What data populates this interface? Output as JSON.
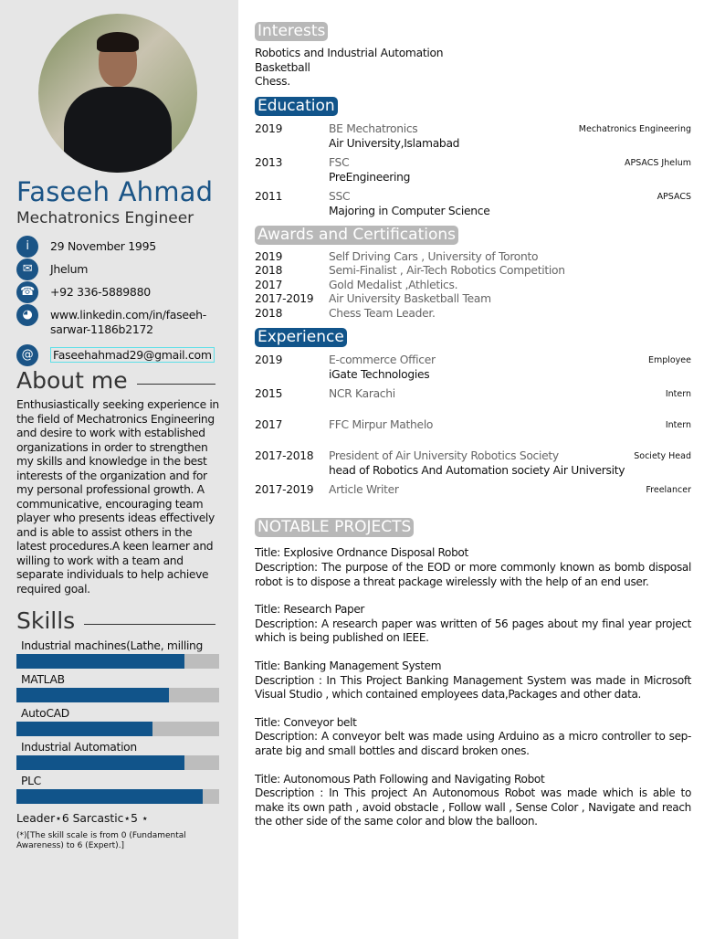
{
  "profile": {
    "name": "Faseeh Ahmad",
    "role": "Mechatronics Engineer",
    "photo_alt": "profile photo"
  },
  "contacts": [
    {
      "icon": "info-icon",
      "glyph": "i",
      "text": "29 November 1995"
    },
    {
      "icon": "envelope-icon",
      "glyph": "✉",
      "text": "Jhelum"
    },
    {
      "icon": "phone-icon",
      "glyph": "☎",
      "text": "+92 336-5889880"
    },
    {
      "icon": "globe-icon",
      "glyph": "◕",
      "text": "www.linkedin.com/in/faseeh-sarwar-1186b2172"
    },
    {
      "icon": "at-icon",
      "glyph": "@",
      "text": "Faseehahmad29@gmail.com"
    }
  ],
  "about": {
    "heading": "About me",
    "text": "Enthusiastically seeking experience in the field of Mechatronics Engineering and desire to work with established organizations in order to strengthen my skills and knowledge in the best interests of the organization and for my personal professional growth. A communicative, encouraging team player who presents ideas effectively and is able to assist others in the latest procedures.A keen learner and willing to work with a team and separate individuals to help achieve required goal."
  },
  "skills": {
    "heading": "Skills",
    "items": [
      {
        "label": "Industrial machines(Lathe, milling",
        "level_pct": 83
      },
      {
        "label": "MATLAB",
        "level_pct": 75
      },
      {
        "label": "AutoCAD",
        "level_pct": 67
      },
      {
        "label": "Industrial Automation",
        "level_pct": 83
      },
      {
        "label": "PLC",
        "level_pct": 92
      }
    ],
    "traits": "Leader⋆6 Sarcastic⋆5 ⋆",
    "note": "(*)[The skill scale is from 0 (Fundamental Awareness) to 6 (Expert).]"
  },
  "colors": {
    "accent": "#11548a",
    "sidebar": "#e6e6e6",
    "grey_heading": "#b8b8b8"
  },
  "interests": {
    "heading": "Interests",
    "items": [
      "Robotics and Industrial Automation",
      "Basketball",
      "Chess."
    ]
  },
  "education": {
    "heading": "Education",
    "items": [
      {
        "year": "2019",
        "title": "BE Mechatronics",
        "sub": "Air University,Islamabad",
        "right": "Mechatronics Engineering"
      },
      {
        "year": "2013",
        "title": "FSC",
        "sub": "PreEngineering",
        "right": "APSACS Jhelum"
      },
      {
        "year": "2011",
        "title": "SSC",
        "sub": "Majoring in Computer Science",
        "right": "APSACS"
      }
    ]
  },
  "awards": {
    "heading": "Awards and Certifications",
    "items": [
      {
        "year": "2019",
        "title": "Self Driving Cars , University of Toronto"
      },
      {
        "year": "2018",
        "title": "Semi-Finalist , Air-Tech Robotics Competition"
      },
      {
        "year": "2017",
        "title": "Gold Medalist ,Athletics."
      },
      {
        "year": "2017-2019",
        "title": "Air University Basketball Team"
      },
      {
        "year": "2018",
        "title": "Chess Team Leader."
      }
    ]
  },
  "experience": {
    "heading": "Experience",
    "items": [
      {
        "year": "2019",
        "title": "E-commerce Officer",
        "sub": "iGate Technologies",
        "right": "Employee"
      },
      {
        "year": "2015",
        "title": "NCR Karachi",
        "sub": "",
        "right": "Intern"
      },
      {
        "year": "2017",
        "title": "FFC Mirpur Mathelo",
        "sub": "",
        "right": "Intern"
      },
      {
        "year": "2017-2018",
        "title": "President of Air University Robotics Society",
        "sub": "head of Robotics And Automation society Air University",
        "right": "Society Head"
      },
      {
        "year": "2017-2019",
        "title": "Article Writer",
        "sub": "",
        "right": "Freelancer"
      }
    ]
  },
  "projects": {
    "heading": "NOTABLE PROJECTS",
    "items": [
      {
        "title": "Title: Explosive Ordnance Disposal Robot",
        "desc": "Description: The purpose of the EOD or more commonly known as bomb disposal robot is to dispose a threat package wirelessly with the help of an end user."
      },
      {
        "title": "Title: Research Paper",
        "desc": "Description: A research paper was written of 56 pages about my final year project which is being published on IEEE."
      },
      {
        "title": "Title: Banking Management System",
        "desc": "Description : In This Project Banking Management System was made in Microsoft Visual Studio , which contained employees data,Packages and other data."
      },
      {
        "title": "Title: Conveyor belt",
        "desc": "Description: A conveyor belt was made using Arduino as a micro controller to sep-arate big and small bottles and discard broken ones."
      },
      {
        "title": "Title: Autonomous Path Following and Navigating Robot",
        "desc": "Description : In This project An Autonomous Robot was made which is able to make its own path , avoid obstacle , Follow wall , Sense Color , Navigate and reach the other side of the same color and blow the balloon."
      }
    ]
  }
}
